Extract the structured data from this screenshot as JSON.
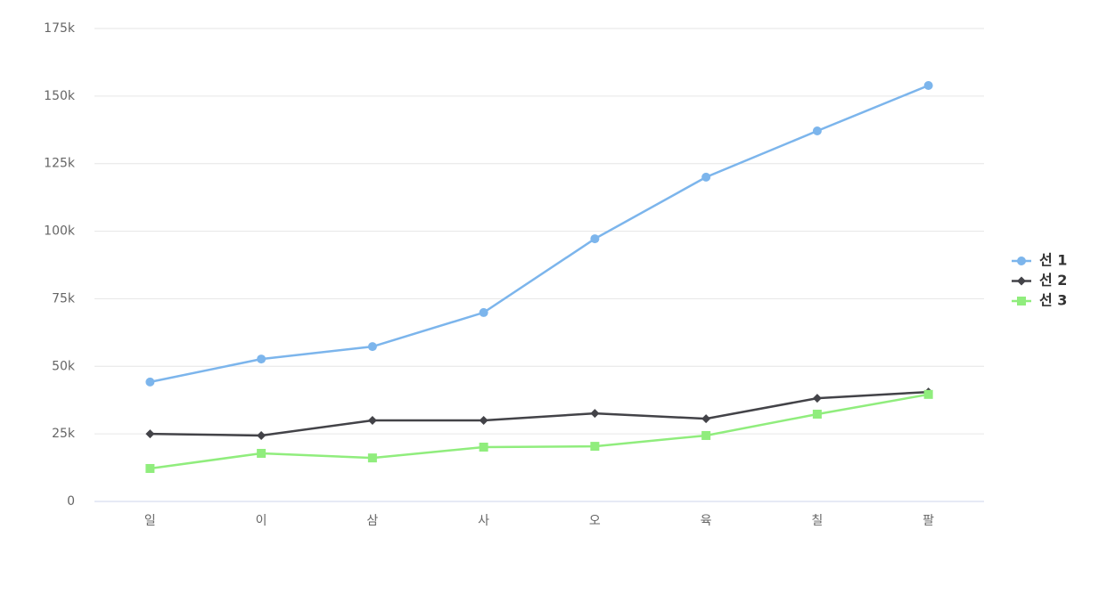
{
  "chart_data": {
    "type": "line",
    "categories": [
      "일",
      "이",
      "삼",
      "사",
      "오",
      "육",
      "칠",
      "팔"
    ],
    "series": [
      {
        "name": "선 1",
        "color": "#7cb5ec",
        "marker": "circle",
        "values": [
          44200,
          52700,
          57300,
          69900,
          97200,
          120000,
          137100,
          153900
        ]
      },
      {
        "name": "선 2",
        "color": "#434348",
        "marker": "diamond",
        "values": [
          25000,
          24400,
          30000,
          30000,
          32600,
          30600,
          38200,
          40500
        ]
      },
      {
        "name": "선 3",
        "color": "#90ed7d",
        "marker": "square",
        "values": [
          12200,
          17800,
          16100,
          20100,
          20400,
          24400,
          32300,
          39600
        ]
      }
    ],
    "ylim": [
      0,
      175000
    ],
    "yticks": [
      0,
      {
        "value": 25000,
        "label": "25k"
      },
      {
        "value": 50000,
        "label": "50k"
      },
      {
        "value": 75000,
        "label": "75k"
      },
      {
        "value": 100000,
        "label": "100k"
      },
      {
        "value": 125000,
        "label": "125k"
      },
      {
        "value": 150000,
        "label": "150k"
      },
      {
        "value": 175000,
        "label": "175k"
      }
    ],
    "grid": true,
    "legend": "right"
  }
}
